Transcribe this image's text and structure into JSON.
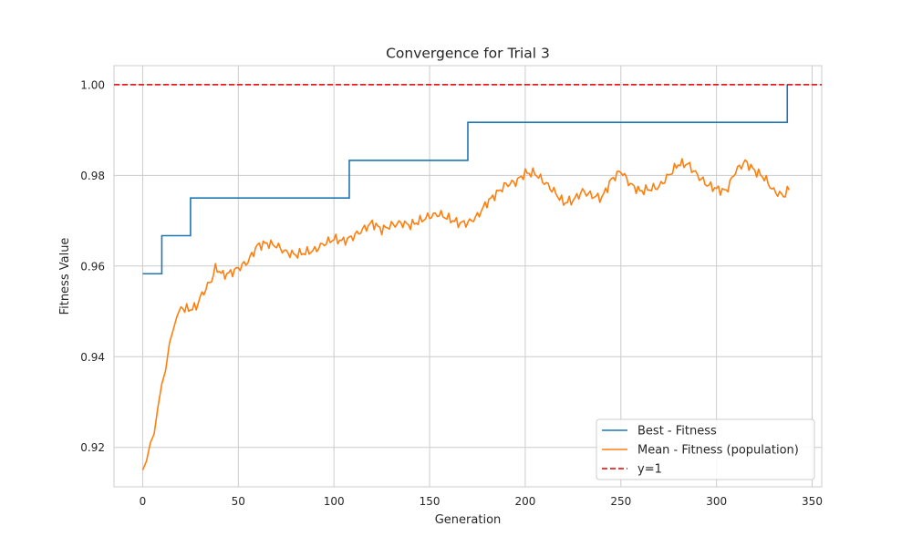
{
  "chart_data": {
    "type": "line",
    "title": "Convergence for Trial 3",
    "xlabel": "Generation",
    "ylabel": "Fitness Value",
    "xlim": [
      -15,
      355
    ],
    "ylim": [
      0.9113,
      1.0042
    ],
    "x_ticks": [
      0,
      50,
      100,
      150,
      200,
      250,
      300,
      350
    ],
    "y_ticks": [
      0.92,
      0.94,
      0.96,
      0.98,
      1.0
    ],
    "y_tick_labels": [
      "0.92",
      "0.94",
      "0.96",
      "0.98",
      "1.00"
    ],
    "grid": true,
    "legend_position": "lower-right",
    "series": [
      {
        "name": "Best - Fitness",
        "color": "#1f77b4",
        "style": "step",
        "points": [
          [
            0,
            0.9583
          ],
          [
            10,
            0.9583
          ],
          [
            10,
            0.9667
          ],
          [
            25,
            0.9667
          ],
          [
            25,
            0.975
          ],
          [
            108,
            0.975
          ],
          [
            108,
            0.9833
          ],
          [
            170,
            0.9833
          ],
          [
            170,
            0.9917
          ],
          [
            337,
            0.9917
          ],
          [
            337,
            1.0
          ]
        ]
      },
      {
        "name": "Mean - Fitness (population)",
        "color": "#ff7f0e",
        "style": "line",
        "anchors": [
          [
            0,
            0.915
          ],
          [
            2,
            0.917
          ],
          [
            4,
            0.921
          ],
          [
            6,
            0.923
          ],
          [
            8,
            0.929
          ],
          [
            10,
            0.934
          ],
          [
            12,
            0.937
          ],
          [
            14,
            0.943
          ],
          [
            16,
            0.946
          ],
          [
            18,
            0.949
          ],
          [
            20,
            0.951
          ],
          [
            22,
            0.9505
          ],
          [
            25,
            0.9505
          ],
          [
            28,
            0.951
          ],
          [
            30,
            0.953
          ],
          [
            33,
            0.955
          ],
          [
            36,
            0.957
          ],
          [
            38,
            0.9595
          ],
          [
            40,
            0.959
          ],
          [
            42,
            0.958
          ],
          [
            46,
            0.9585
          ],
          [
            50,
            0.9595
          ],
          [
            55,
            0.961
          ],
          [
            60,
            0.9645
          ],
          [
            65,
            0.965
          ],
          [
            70,
            0.9645
          ],
          [
            75,
            0.963
          ],
          [
            80,
            0.9625
          ],
          [
            85,
            0.963
          ],
          [
            90,
            0.9635
          ],
          [
            95,
            0.965
          ],
          [
            100,
            0.966
          ],
          [
            105,
            0.9655
          ],
          [
            110,
            0.9665
          ],
          [
            115,
            0.968
          ],
          [
            120,
            0.9695
          ],
          [
            125,
            0.968
          ],
          [
            130,
            0.969
          ],
          [
            135,
            0.9695
          ],
          [
            140,
            0.969
          ],
          [
            145,
            0.97
          ],
          [
            150,
            0.971
          ],
          [
            155,
            0.9715
          ],
          [
            160,
            0.9705
          ],
          [
            165,
            0.9695
          ],
          [
            170,
            0.9695
          ],
          [
            175,
            0.971
          ],
          [
            180,
            0.974
          ],
          [
            185,
            0.976
          ],
          [
            190,
            0.978
          ],
          [
            195,
            0.9785
          ],
          [
            200,
            0.9805
          ],
          [
            205,
            0.9805
          ],
          [
            210,
            0.9785
          ],
          [
            215,
            0.9765
          ],
          [
            220,
            0.974
          ],
          [
            225,
            0.9745
          ],
          [
            230,
            0.9765
          ],
          [
            235,
            0.9755
          ],
          [
            240,
            0.975
          ],
          [
            245,
            0.979
          ],
          [
            250,
            0.981
          ],
          [
            255,
            0.978
          ],
          [
            260,
            0.9765
          ],
          [
            265,
            0.977
          ],
          [
            270,
            0.9775
          ],
          [
            275,
            0.98
          ],
          [
            280,
            0.9825
          ],
          [
            285,
            0.9825
          ],
          [
            290,
            0.98
          ],
          [
            295,
            0.978
          ],
          [
            300,
            0.977
          ],
          [
            305,
            0.9765
          ],
          [
            310,
            0.981
          ],
          [
            315,
            0.983
          ],
          [
            320,
            0.981
          ],
          [
            325,
            0.9795
          ],
          [
            330,
            0.9765
          ],
          [
            335,
            0.9755
          ],
          [
            338,
            0.977
          ]
        ]
      },
      {
        "name": "y=1",
        "color": "#e00000",
        "style": "dashed",
        "y": 1.0
      }
    ]
  }
}
